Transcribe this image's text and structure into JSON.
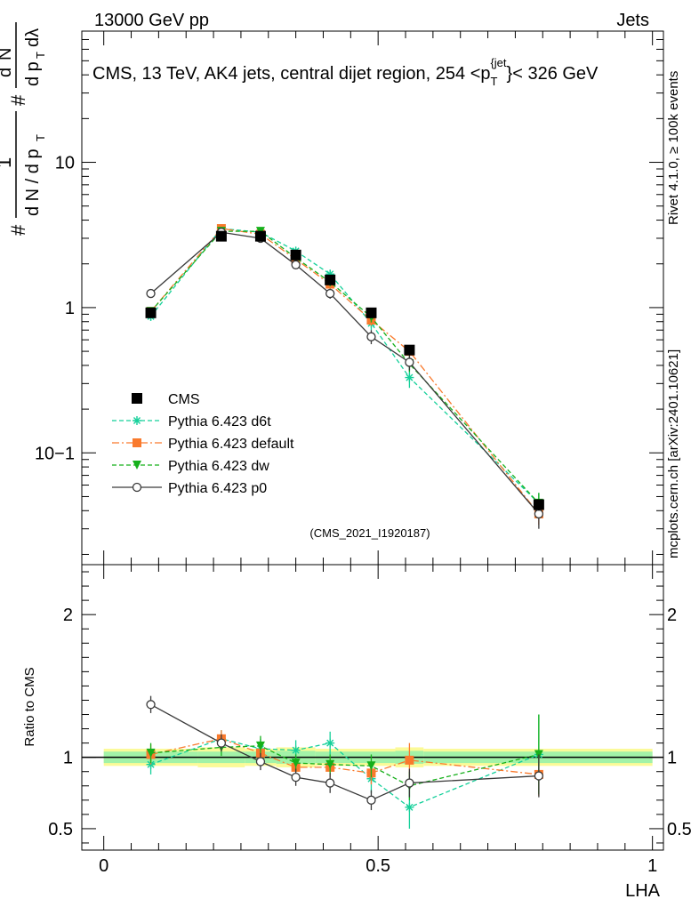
{
  "header": {
    "left": "13000 GeV pp",
    "right": "Jets"
  },
  "side_labels": {
    "rivet": "Rivet 4.1.0, ≥ 100k events",
    "mcplots": "mcplots.cern.ch [arXiv:2401.10621]"
  },
  "chart_data": [
    {
      "type": "line",
      "title": "CMS, 13 TeV, AK4 jets, central dijet region, 254 <p_T^{jet}< 326 GeV",
      "title_parts": {
        "pre": "CMS, 13 TeV, AK4 jets, central dijet region, 254 <p",
        "sub": "T",
        "sup": "{jet",
        "post": "}< 326 GeV"
      },
      "ylabel_text": "1/(dN/dp_T) d²N/(dp_T dλ)",
      "watermark": "(CMS_2021_I1920187)",
      "yscale": "log",
      "xlim": [
        -0.04,
        1.02
      ],
      "ylim": [
        0.017,
        80
      ],
      "ytick_labels": [
        "10−1",
        "1",
        "10"
      ],
      "x": [
        0.0857,
        0.2143,
        0.2857,
        0.35,
        0.4125,
        0.4875,
        0.5571,
        0.7929
      ],
      "x_bin_edges": [
        0.0,
        0.1714,
        0.2571,
        0.3143,
        0.3857,
        0.4438,
        0.5313,
        0.5828,
        1.0
      ],
      "series": [
        {
          "name": "CMS",
          "color": "#000000",
          "style": "data",
          "values": [
            0.92,
            3.1,
            3.1,
            2.3,
            1.55,
            0.92,
            0.51,
            0.044
          ],
          "errors": [
            0.06,
            0.15,
            0.15,
            0.12,
            0.09,
            0.05,
            0.04,
            0.004
          ]
        },
        {
          "name": "Pythia 6.423 d6t",
          "color": "#14d09a",
          "style": "dashed",
          "marker": "star",
          "values": [
            0.87,
            3.5,
            3.3,
            2.45,
            1.7,
            0.78,
            0.33,
            0.045
          ],
          "errors": [
            0.06,
            0.12,
            0.14,
            0.14,
            0.12,
            0.08,
            0.05,
            0.008
          ]
        },
        {
          "name": "Pythia 6.423 default",
          "color": "#f97a2d",
          "style": "dashdot",
          "marker": "square",
          "values": [
            0.94,
            3.5,
            3.2,
            2.15,
            1.45,
            0.82,
            0.5,
            0.038
          ],
          "errors": [
            0.06,
            0.12,
            0.14,
            0.12,
            0.1,
            0.07,
            0.05,
            0.006
          ]
        },
        {
          "name": "Pythia 6.423 dw",
          "color": "#16b01b",
          "style": "dashed",
          "marker": "triangle-down",
          "values": [
            0.94,
            3.35,
            3.35,
            2.2,
            1.5,
            0.86,
            0.41,
            0.045
          ],
          "errors": [
            0.06,
            0.12,
            0.14,
            0.12,
            0.1,
            0.07,
            0.05,
            0.008
          ]
        },
        {
          "name": "Pythia 6.423 p0",
          "color": "#3a3a3a",
          "style": "solid",
          "marker": "open-circle",
          "values": [
            1.25,
            3.3,
            3.0,
            1.97,
            1.25,
            0.63,
            0.42,
            0.038
          ],
          "errors": [
            0.06,
            0.12,
            0.14,
            0.12,
            0.1,
            0.07,
            0.05,
            0.008
          ]
        }
      ]
    },
    {
      "type": "line",
      "ylabel": "Ratio to CMS",
      "xlabel": "LHA",
      "xlim": [
        -0.04,
        1.02
      ],
      "ylim": [
        0.35,
        2.35
      ],
      "x_tick_labels": [
        "0",
        "0.5",
        "1"
      ],
      "y_tick_labels": [
        "0.5",
        "1",
        "2"
      ],
      "x": [
        0.0857,
        0.2143,
        0.2857,
        0.35,
        0.4125,
        0.4875,
        0.5571,
        0.7929
      ],
      "x_bin_edges": [
        0.0,
        0.1714,
        0.2571,
        0.3143,
        0.3857,
        0.4438,
        0.5313,
        0.5828,
        1.0
      ],
      "band_inner_half": [
        0.04,
        0.04,
        0.04,
        0.045,
        0.04,
        0.04,
        0.045,
        0.04
      ],
      "band_outer_half": [
        0.06,
        0.07,
        0.06,
        0.07,
        0.06,
        0.06,
        0.07,
        0.06
      ],
      "series": [
        {
          "name": "Pythia 6.423 d6t",
          "values": [
            0.95,
            1.13,
            1.06,
            1.05,
            1.1,
            0.85,
            0.65,
            1.02
          ],
          "errors": [
            0.07,
            0.06,
            0.07,
            0.07,
            0.08,
            0.1,
            0.15,
            0.28
          ]
        },
        {
          "name": "Pythia 6.423 default",
          "values": [
            1.02,
            1.13,
            1.03,
            0.93,
            0.93,
            0.89,
            0.98,
            0.88
          ],
          "errors": [
            0.07,
            0.06,
            0.07,
            0.06,
            0.07,
            0.08,
            0.12,
            0.15
          ]
        },
        {
          "name": "Pythia 6.423 dw",
          "values": [
            1.03,
            1.07,
            1.08,
            0.96,
            0.95,
            0.94,
            0.8,
            1.02
          ],
          "errors": [
            0.07,
            0.06,
            0.07,
            0.06,
            0.07,
            0.08,
            0.1,
            0.28
          ]
        },
        {
          "name": "Pythia 6.423 p0",
          "values": [
            1.37,
            1.1,
            0.97,
            0.86,
            0.82,
            0.7,
            0.82,
            0.87
          ],
          "errors": [
            0.06,
            0.06,
            0.06,
            0.06,
            0.07,
            0.07,
            0.1,
            0.15
          ]
        }
      ]
    }
  ]
}
